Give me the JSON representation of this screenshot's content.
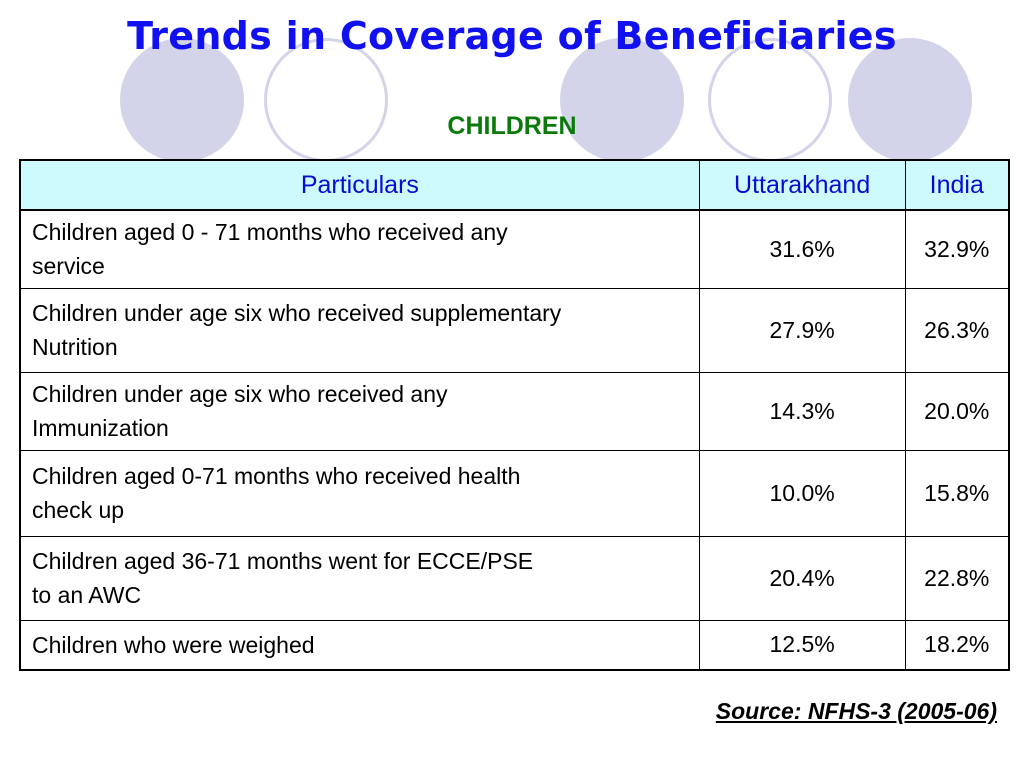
{
  "title": "Trends in Coverage of Beneficiaries",
  "subtitle": "CHILDREN",
  "table": {
    "headers": [
      "Particulars",
      "Uttarakhand",
      "India"
    ],
    "rows": [
      {
        "particular_line1": "Children aged 0 - 71 months who received  any",
        "particular_line2": "service",
        "uttarakhand": "31.6%",
        "india": "32.9%"
      },
      {
        "particular_line1": "Children under age six who received supplementary",
        "particular_line2": "Nutrition",
        "uttarakhand": "27.9%",
        "india": "26.3%"
      },
      {
        "particular_line1": "Children under age six who received any",
        "particular_line2": "Immunization",
        "uttarakhand": "14.3%",
        "india": "20.0%"
      },
      {
        "particular_line1": "Children aged 0-71 months who received health",
        "particular_line2": "check up",
        "uttarakhand": "10.0%",
        "india": "15.8%"
      },
      {
        "particular_line1": "Children aged 36-71 months went for ECCE/PSE",
        "particular_line2": "to an AWC",
        "uttarakhand": "20.4%",
        "india": "22.8%"
      },
      {
        "particular_line1": "Children who were weighed",
        "particular_line2": "",
        "uttarakhand": "12.5%",
        "india": "18.2%"
      }
    ]
  },
  "source": "Source: NFHS-3 (2005-06)",
  "colors": {
    "title": "#1010f0",
    "subtitle": "#0a7a0a",
    "header_bg": "#ccfafd",
    "header_text": "#0a0ad0",
    "decoration": "#d3d3ea"
  }
}
